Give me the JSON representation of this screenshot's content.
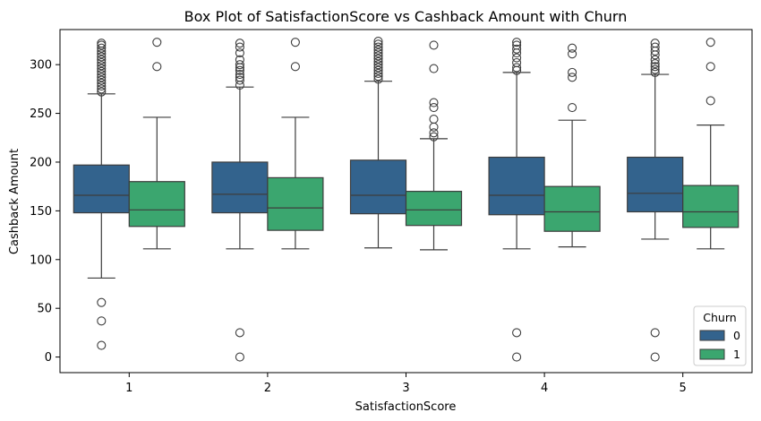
{
  "chart_data": {
    "type": "box",
    "title": "Box Plot of SatisfactionScore vs Cashback Amount with Churn",
    "xlabel": "SatisfactionScore",
    "ylabel": "Cashback Amount",
    "categories": [
      "1",
      "2",
      "3",
      "4",
      "5"
    ],
    "ylim": [
      -16,
      336
    ],
    "yticks": [
      0,
      50,
      100,
      150,
      200,
      250,
      300
    ],
    "grid": false,
    "legend": {
      "title": "Churn",
      "position": "lower-right"
    },
    "series": [
      {
        "name": "0",
        "color": "#33638d",
        "boxes": [
          {
            "whisker_low": 81,
            "q1": 148,
            "median": 166,
            "q3": 197,
            "whisker_high": 270,
            "outliers": [
              12,
              37,
              56,
              272,
              275,
              278,
              281,
              284,
              287,
              290,
              293,
              296,
              299,
              302,
              305,
              308,
              311,
              314,
              317,
              320,
              322
            ]
          },
          {
            "whisker_low": 111,
            "q1": 148,
            "median": 167,
            "q3": 200,
            "whisker_high": 277,
            "outliers": [
              0,
              25,
              279,
              284,
              287,
              290,
              294,
              297,
              300,
              305,
              312,
              318,
              322
            ]
          },
          {
            "whisker_low": 112,
            "q1": 147,
            "median": 166,
            "q3": 202,
            "whisker_high": 283,
            "outliers": [
              285,
              288,
              291,
              294,
              297,
              300,
              303,
              306,
              309,
              312,
              315,
              318,
              321,
              324
            ]
          },
          {
            "whisker_low": 111,
            "q1": 146,
            "median": 166,
            "q3": 205,
            "whisker_high": 292,
            "outliers": [
              0,
              25,
              294,
              297,
              302,
              307,
              312,
              316,
              320,
              323
            ]
          },
          {
            "whisker_low": 121,
            "q1": 149,
            "median": 168,
            "q3": 205,
            "whisker_high": 290,
            "outliers": [
              0,
              25,
              292,
              295,
              298,
              301,
              305,
              310,
              314,
              318,
              322
            ]
          }
        ]
      },
      {
        "name": "1",
        "color": "#3ba66f",
        "boxes": [
          {
            "whisker_low": 111,
            "q1": 134,
            "median": 151,
            "q3": 180,
            "whisker_high": 246,
            "outliers": [
              298,
              323
            ]
          },
          {
            "whisker_low": 111,
            "q1": 130,
            "median": 153,
            "q3": 184,
            "whisker_high": 246,
            "outliers": [
              298,
              323
            ]
          },
          {
            "whisker_low": 110,
            "q1": 135,
            "median": 151,
            "q3": 170,
            "whisker_high": 224,
            "outliers": [
              226,
              230,
              236,
              244,
              256,
              261,
              296,
              320
            ]
          },
          {
            "whisker_low": 113,
            "q1": 129,
            "median": 149,
            "q3": 175,
            "whisker_high": 243,
            "outliers": [
              256,
              287,
              292,
              311,
              317
            ]
          },
          {
            "whisker_low": 111,
            "q1": 133,
            "median": 149,
            "q3": 176,
            "whisker_high": 238,
            "outliers": [
              263,
              298,
              323
            ]
          }
        ]
      }
    ]
  }
}
